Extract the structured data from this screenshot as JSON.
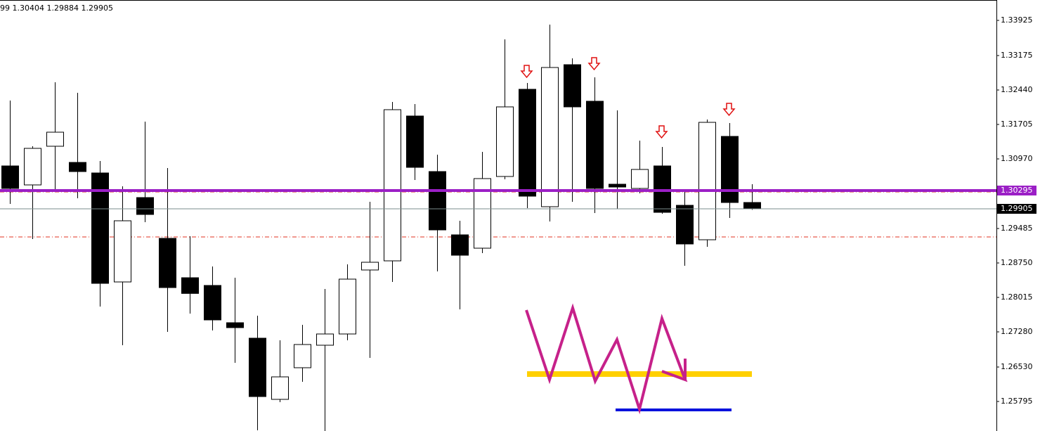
{
  "chart_data": {
    "type": "candlestick",
    "header": "99 1.30404 1.29884 1.29905",
    "open": [
      1.3082,
      1.30415,
      1.3124,
      1.30895,
      1.3067,
      1.28345,
      1.30145,
      1.29275,
      1.28435,
      1.2827,
      1.27475,
      1.27145,
      1.2584,
      1.26515,
      1.26995,
      1.27235,
      1.286,
      1.28795,
      1.31885,
      1.307,
      1.2935,
      1.29065,
      1.30595,
      1.32455,
      1.2995,
      1.3298,
      1.322,
      1.3043,
      1.3034,
      1.3082,
      1.2998,
      1.29245,
      1.3145,
      1.3004
    ],
    "high": [
      1.32215,
      1.3124,
      1.32605,
      1.3238,
      1.30925,
      1.30385,
      1.31765,
      1.30775,
      1.2932,
      1.28675,
      1.28435,
      1.27625,
      1.271,
      1.2743,
      1.28195,
      1.2872,
      1.30055,
      1.32185,
      1.3214,
      1.3106,
      1.2965,
      1.3112,
      1.3352,
      1.3259,
      1.33835,
      1.33115,
      1.3271,
      1.32005,
      1.3136,
      1.31225,
      1.30265,
      1.3181,
      1.31735,
      1.3043
    ],
    "low": [
      1.3001,
      1.2926,
      1.3031,
      1.3013,
      1.2782,
      1.26995,
      1.2962,
      1.2728,
      1.2767,
      1.2731,
      1.2662,
      1.2518,
      1.2578,
      1.26215,
      1.25165,
      1.271,
      1.26725,
      1.28345,
      1.3052,
      1.2857,
      1.2776,
      1.2896,
      1.30535,
      1.2992,
      1.29635,
      1.30055,
      1.29815,
      1.29905,
      1.30235,
      1.298,
      1.2869,
      1.29095,
      1.2971,
      1.29884
    ],
    "close": [
      1.3034,
      1.31195,
      1.3154,
      1.307,
      1.28315,
      1.2965,
      1.29785,
      1.28225,
      1.281,
      1.27535,
      1.2737,
      1.259,
      1.2632,
      1.2701,
      1.27235,
      1.28405,
      1.28765,
      1.3202,
      1.3079,
      1.29455,
      1.28915,
      1.3055,
      1.3208,
      1.30175,
      1.3292,
      1.3208,
      1.3034,
      1.3037,
      1.30745,
      1.2983,
      1.29155,
      1.3175,
      1.3004,
      1.29905
    ],
    "up_color": "#ffffff",
    "down_color": "#000000",
    "ylim": [
      1.25165,
      1.3436
    ],
    "yticks": [
      1.33925,
      1.33175,
      {
        "value": 1.3244,
        "label": "1.32440"
      },
      1.31705,
      {
        "value": 1.3097,
        "label": "1.30970"
      },
      1.29485,
      {
        "value": 1.2875,
        "label": "1.28750"
      },
      1.28015,
      {
        "value": 1.2728,
        "label": "1.27280"
      },
      {
        "value": 1.2653,
        "label": "1.26530"
      },
      1.25795
    ],
    "levels": [
      {
        "value": 1.30295,
        "color": "#9b1fc6"
      },
      {
        "value": 1.29905,
        "color": "#000000"
      }
    ]
  }
}
